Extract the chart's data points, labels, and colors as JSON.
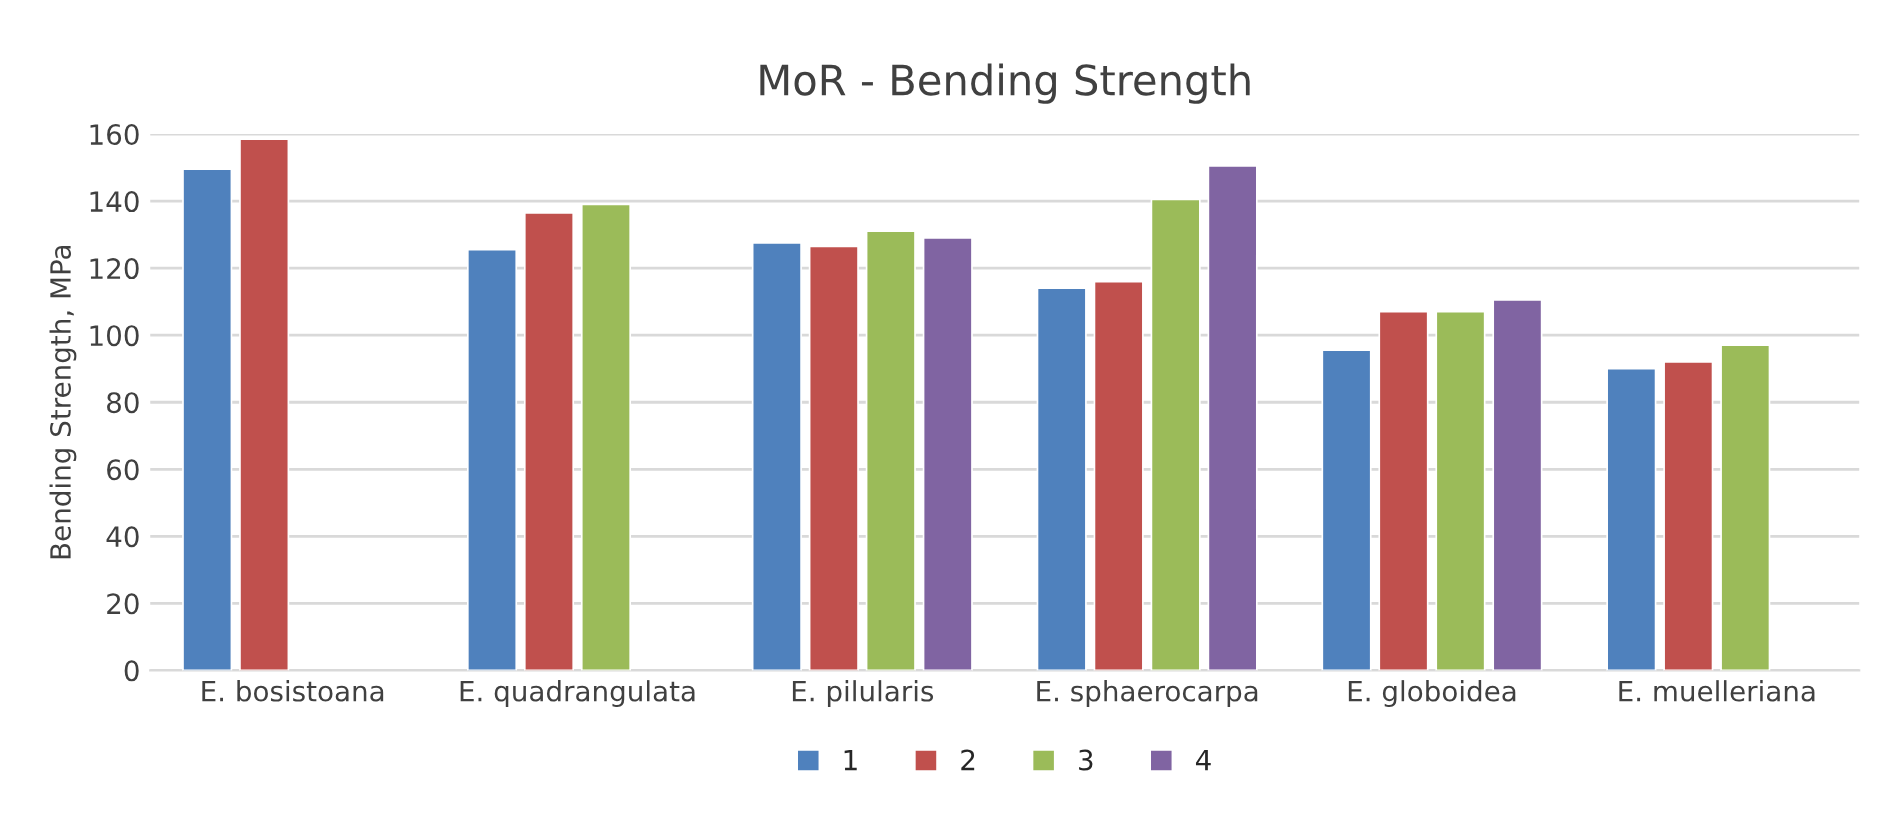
{
  "chart_data": {
    "type": "bar",
    "title": "MoR - Bending Strength",
    "ylabel": "Bending Strength, MPa",
    "categories": [
      "E. bosistoana",
      "E. quadrangulata",
      "E. pilularis",
      "E. sphaerocarpa",
      "E. globoidea",
      "E. muelleriana"
    ],
    "series": [
      {
        "name": "1",
        "color": "#4f81bd",
        "values": [
          149.5,
          125.5,
          127.5,
          114,
          95.5,
          90
        ]
      },
      {
        "name": "2",
        "color": "#c0504d",
        "values": [
          158.5,
          136.5,
          126.5,
          116,
          107,
          92
        ]
      },
      {
        "name": "3",
        "color": "#9bbb59",
        "values": [
          null,
          139,
          131,
          140.5,
          107,
          97
        ]
      },
      {
        "name": "4",
        "color": "#8064a2",
        "values": [
          null,
          null,
          129,
          150.5,
          110.5,
          null
        ]
      }
    ],
    "ylim": [
      0,
      160
    ],
    "yticks": [
      0,
      20,
      40,
      60,
      80,
      100,
      120,
      140,
      160
    ],
    "grid": "y",
    "legend": "bottom"
  }
}
